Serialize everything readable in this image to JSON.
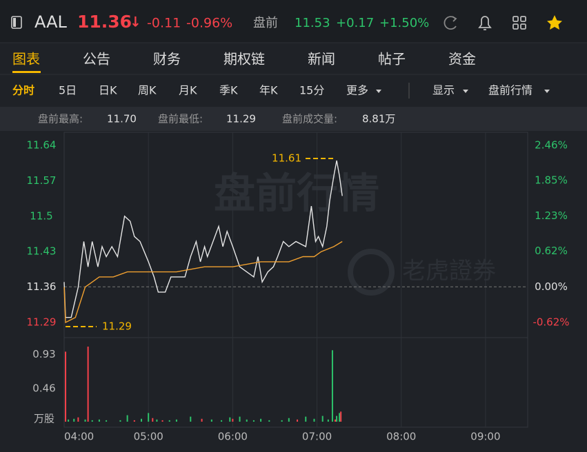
{
  "header": {
    "symbol": "AAL",
    "price": "11.36",
    "arrow": "↓",
    "change": "-0.11",
    "change_pct": "-0.96%",
    "session": "盘前",
    "pre_price": "11.53",
    "pre_change": "+0.17",
    "pre_change_pct": "+1.50%",
    "down_color": "#f5414a",
    "up_color": "#2dc36a"
  },
  "tabs": [
    "图表",
    "公告",
    "财务",
    "期权链",
    "新闻",
    "帖子",
    "资金"
  ],
  "active_tab": 0,
  "subtabs": [
    "分时",
    "5日",
    "日K",
    "周K",
    "月K",
    "季K",
    "年K",
    "15分",
    "更多"
  ],
  "active_subtab": 0,
  "subtabs_right": [
    "显示",
    "盘前行情"
  ],
  "stats": [
    {
      "label": "盘前最高:",
      "value": "11.70"
    },
    {
      "label": "盘前最低:",
      "value": "11.29"
    },
    {
      "label": "盘前成交量:",
      "value": "8.81万"
    }
  ],
  "chart_data": [
    {
      "type": "line",
      "watermark": "盘前行情",
      "brand": "老虎證券",
      "xlim": [
        240,
        570
      ],
      "ylim": [
        11.29,
        11.64
      ],
      "y2lim": [
        -0.62,
        2.46
      ],
      "yticks": [
        11.64,
        11.57,
        11.5,
        11.43,
        11.36,
        11.29
      ],
      "y2ticks": [
        {
          "value": 2.46,
          "label": "2.46%"
        },
        {
          "value": 1.85,
          "label": "1.85%"
        },
        {
          "value": 1.23,
          "label": "1.23%"
        },
        {
          "value": 0.62,
          "label": "0.62%"
        },
        {
          "value": 0,
          "label": "0.00%"
        },
        {
          "value": -0.62,
          "label": "-0.62%"
        }
      ],
      "series": [
        {
          "color": "#e6e6e6",
          "x": [
            240,
            241,
            245,
            250,
            254,
            257,
            260,
            264,
            267,
            270,
            274,
            278,
            283,
            287,
            290,
            294,
            297,
            300,
            304,
            307,
            312,
            316,
            326,
            330,
            334,
            337,
            340,
            342,
            350,
            353,
            356,
            360,
            365,
            370,
            375,
            378,
            381,
            385,
            389,
            392,
            396,
            400,
            405,
            412,
            416,
            419,
            421,
            424,
            427,
            429,
            432,
            434,
            436,
            438
          ],
          "values": [
            11.37,
            11.3,
            11.3,
            11.36,
            11.45,
            11.4,
            11.45,
            11.4,
            11.44,
            11.42,
            11.44,
            11.42,
            11.5,
            11.49,
            11.46,
            11.45,
            11.43,
            11.41,
            11.38,
            11.35,
            11.35,
            11.38,
            11.38,
            11.42,
            11.45,
            11.41,
            11.44,
            11.42,
            11.48,
            11.44,
            11.47,
            11.44,
            11.4,
            11.39,
            11.38,
            11.42,
            11.37,
            11.39,
            11.4,
            11.42,
            11.45,
            11.44,
            11.45,
            11.44,
            11.52,
            11.45,
            11.46,
            11.44,
            11.48,
            11.53,
            11.58,
            11.61,
            11.58,
            11.54
          ]
        },
        {
          "color": "#f0a030",
          "x": [
            240,
            241,
            248,
            255,
            265,
            275,
            285,
            300,
            320,
            340,
            360,
            380,
            400,
            410,
            418,
            423,
            432,
            438
          ],
          "values": [
            11.36,
            11.29,
            11.3,
            11.36,
            11.38,
            11.38,
            11.39,
            11.39,
            11.39,
            11.4,
            11.4,
            11.41,
            11.41,
            11.42,
            11.42,
            11.43,
            11.44,
            11.45
          ]
        }
      ],
      "annotations": [
        11.61,
        11.29
      ],
      "annotation_color": "#f5b700"
    },
    {
      "type": "bar",
      "y_unit": "万股",
      "xlim": [
        240,
        570
      ],
      "ylim": [
        0,
        1.05
      ],
      "yticks": [
        0.93,
        0.46
      ],
      "xticks": [
        {
          "value": 240,
          "label": "04:00"
        },
        {
          "value": 300,
          "label": "05:00"
        },
        {
          "value": 360,
          "label": "06:00"
        },
        {
          "value": 420,
          "label": "07:00"
        },
        {
          "value": 480,
          "label": "08:00"
        },
        {
          "value": 540,
          "label": "09:00"
        }
      ],
      "x": [
        241,
        243,
        247,
        250,
        255,
        257,
        260,
        265,
        270,
        280,
        285,
        290,
        295,
        300,
        303,
        306,
        310,
        315,
        320,
        330,
        338,
        345,
        352,
        358,
        360,
        365,
        370,
        375,
        380,
        386,
        395,
        400,
        406,
        412,
        418,
        424,
        428,
        431,
        433,
        434,
        436,
        437
      ],
      "values": [
        0.97,
        0.03,
        0.04,
        0.06,
        0.03,
        1.04,
        0.02,
        0.03,
        0.02,
        0.02,
        0.09,
        0.02,
        0.04,
        0.12,
        0.05,
        0.03,
        0.02,
        0.02,
        0.03,
        0.07,
        0.04,
        0.03,
        0.02,
        0.06,
        0.04,
        0.07,
        0.03,
        0.02,
        0.04,
        0.02,
        0.02,
        0.05,
        0.03,
        0.07,
        0.04,
        0.08,
        0.03,
        0.99,
        0.03,
        0.08,
        0.12,
        0.14
      ],
      "colors": [
        "#f5414a",
        "#2dc36a",
        "#2dc36a",
        "#f5414a",
        "#2dc36a",
        "#f5414a",
        "#2dc36a",
        "#2dc36a",
        "#2dc36a",
        "#2dc36a",
        "#2dc36a",
        "#f5414a",
        "#2dc36a",
        "#2dc36a",
        "#f5414a",
        "#2dc36a",
        "#f5414a",
        "#2dc36a",
        "#2dc36a",
        "#2dc36a",
        "#f5414a",
        "#2dc36a",
        "#2dc36a",
        "#2dc36a",
        "#f5414a",
        "#2dc36a",
        "#2dc36a",
        "#2dc36a",
        "#2dc36a",
        "#2dc36a",
        "#2dc36a",
        "#2dc36a",
        "#f5414a",
        "#2dc36a",
        "#2dc36a",
        "#2dc36a",
        "#2dc36a",
        "#2dc36a",
        "#f5414a",
        "#2dc36a",
        "#2dc36a",
        "#f5414a"
      ]
    }
  ]
}
